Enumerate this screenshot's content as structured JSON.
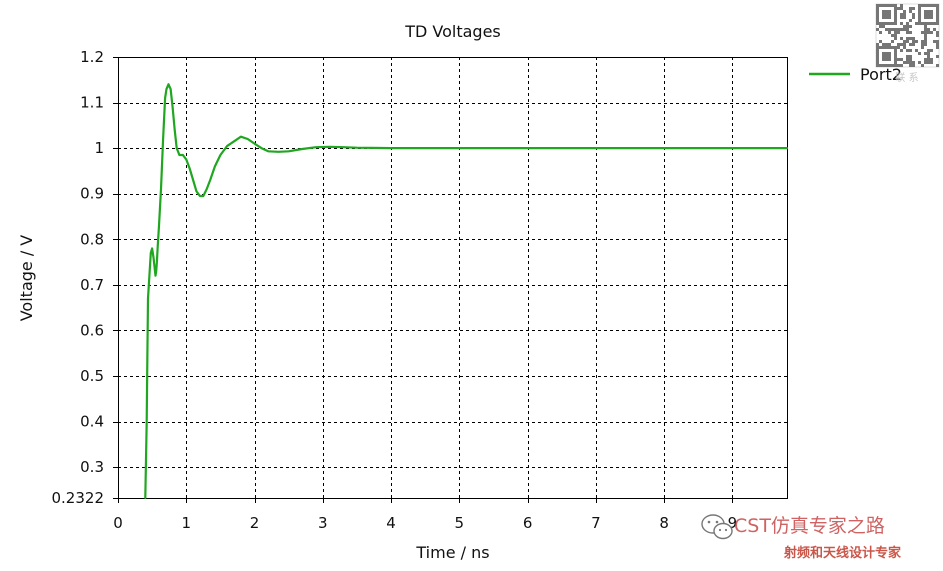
{
  "colors": {
    "series": "#1fa71f",
    "grid": "#000000",
    "axis": "#000000",
    "background": "#ffffff"
  },
  "chart_data": {
    "type": "line",
    "title": "TD Voltages",
    "xlabel": "Time / ns",
    "ylabel": "Voltage / V",
    "xlim": [
      0,
      9.8
    ],
    "ylim": [
      0.2322,
      1.2
    ],
    "x_ticks": [
      0,
      1,
      2,
      3,
      4,
      5,
      6,
      7,
      8,
      9
    ],
    "x_tick_labels": [
      "0",
      "1",
      "2",
      "3",
      "4",
      "5",
      "6",
      "7",
      "8",
      "9"
    ],
    "y_ticks": [
      0.2322,
      0.3,
      0.4,
      0.5,
      0.6,
      0.7,
      0.8,
      0.9,
      1.0,
      1.1,
      1.2
    ],
    "y_tick_labels": [
      "0.2322",
      "0.3",
      "0.4",
      "0.5",
      "0.6",
      "0.7",
      "0.8",
      "0.9",
      "1",
      "1.1",
      "1.2"
    ],
    "grid": true,
    "grid_style": "dashed",
    "legend_position": "top-right",
    "series": [
      {
        "name": "Port2",
        "color": "#1fa71f",
        "x": [
          0.4,
          0.42,
          0.43,
          0.44,
          0.46,
          0.48,
          0.5,
          0.52,
          0.55,
          0.56,
          0.57,
          0.58,
          0.6,
          0.63,
          0.66,
          0.69,
          0.71,
          0.74,
          0.77,
          0.8,
          0.83,
          0.86,
          0.9,
          0.95,
          1.0,
          1.05,
          1.1,
          1.15,
          1.2,
          1.25,
          1.3,
          1.35,
          1.42,
          1.5,
          1.6,
          1.7,
          1.8,
          1.9,
          2.0,
          2.1,
          2.2,
          2.35,
          2.5,
          2.7,
          2.9,
          3.1,
          3.3,
          3.5,
          4.0,
          5.0,
          6.0,
          7.0,
          8.0,
          9.0,
          9.8
        ],
        "y": [
          0.2322,
          0.4,
          0.55,
          0.67,
          0.72,
          0.77,
          0.78,
          0.76,
          0.72,
          0.73,
          0.75,
          0.78,
          0.83,
          0.91,
          1.02,
          1.11,
          1.13,
          1.14,
          1.13,
          1.09,
          1.04,
          1.0,
          0.985,
          0.985,
          0.975,
          0.955,
          0.93,
          0.905,
          0.895,
          0.895,
          0.91,
          0.93,
          0.96,
          0.985,
          1.005,
          1.015,
          1.025,
          1.02,
          1.01,
          1.0,
          0.993,
          0.992,
          0.993,
          0.998,
          1.002,
          1.003,
          1.002,
          1.001,
          1.0,
          1.0,
          1.0,
          1.0,
          1.0,
          1.0,
          1.0
        ]
      }
    ]
  },
  "legend": {
    "entries": [
      {
        "label": "Port2",
        "color": "#1fa71f"
      }
    ]
  },
  "watermarks": {
    "qr_caption": "联 系",
    "footer_line1": "CST仿真专家之路",
    "footer_line2": "射频和天线设计专家"
  }
}
